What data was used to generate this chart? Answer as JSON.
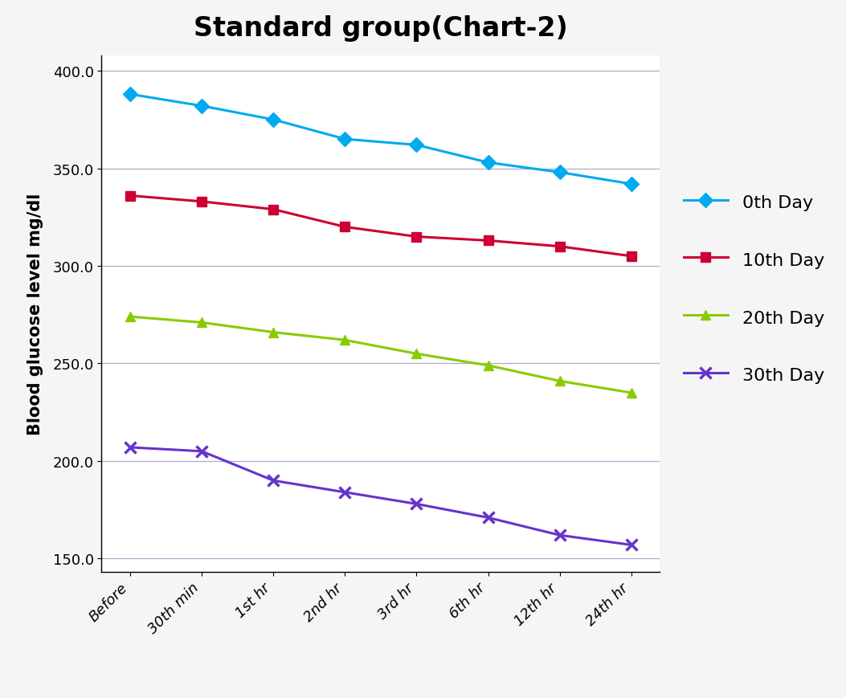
{
  "title": "Standard group(Chart-2)",
  "ylabel": "Blood glucose level mg/dl",
  "x_labels": [
    "Before",
    "30th min",
    "1st hr",
    "2nd hr",
    "3rd hr",
    "6th hr",
    "12th hr",
    "24th hr"
  ],
  "ylim": [
    143,
    408
  ],
  "yticks": [
    150.0,
    200.0,
    250.0,
    300.0,
    350.0,
    400.0
  ],
  "series": [
    {
      "label": "0th Day",
      "values": [
        388,
        382,
        375,
        365,
        362,
        353,
        348,
        342
      ],
      "color": "#00AAEE",
      "marker": "D",
      "markersize": 9,
      "linewidth": 2.2
    },
    {
      "label": "10th Day",
      "values": [
        336,
        333,
        329,
        320,
        315,
        313,
        310,
        305
      ],
      "color": "#CC0033",
      "marker": "s",
      "markersize": 9,
      "linewidth": 2.2
    },
    {
      "label": "20th Day",
      "values": [
        274,
        271,
        266,
        262,
        255,
        249,
        241,
        235
      ],
      "color": "#88CC00",
      "marker": "^",
      "markersize": 9,
      "linewidth": 2.2
    },
    {
      "label": "30th Day",
      "values": [
        207,
        205,
        190,
        184,
        178,
        171,
        162,
        157
      ],
      "color": "#6633CC",
      "marker": "x",
      "markersize": 10,
      "linewidth": 2.2,
      "markeredgewidth": 2.5
    }
  ],
  "title_fontsize": 24,
  "label_fontsize": 15,
  "tick_fontsize": 13,
  "legend_fontsize": 16,
  "background_color": "#f5f5f5",
  "plot_bg_color": "#ffffff",
  "grid_color": "#aaaacc",
  "grid_linewidth": 0.9
}
